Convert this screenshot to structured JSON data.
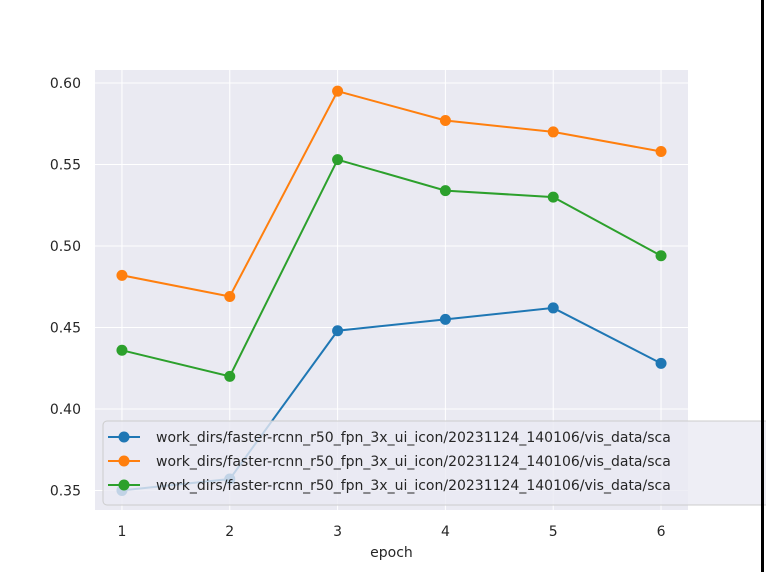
{
  "chart_data": {
    "type": "line",
    "title": "",
    "xlabel": "epoch",
    "ylabel": "",
    "x": [
      1,
      2,
      3,
      4,
      5,
      6
    ],
    "xticks": [
      "1",
      "2",
      "3",
      "4",
      "5",
      "6"
    ],
    "xlim": [
      0.75,
      6.25
    ],
    "ylim": [
      0.338,
      0.608
    ],
    "yticks": [
      "0.35",
      "0.40",
      "0.45",
      "0.50",
      "0.55",
      "0.60"
    ],
    "ytick_values": [
      0.35,
      0.4,
      0.45,
      0.5,
      0.55,
      0.6
    ],
    "grid": true,
    "legend_position": "lower-left",
    "colors": {
      "background": "#eaeaf2",
      "grid": "#ffffff"
    },
    "series": [
      {
        "name": "work_dirs/faster-rcnn_r50_fpn_3x_ui_icon/20231124_140106/vis_data/sca",
        "color": "#1f77b4",
        "values": [
          0.35,
          0.357,
          0.448,
          0.455,
          0.462,
          0.428
        ]
      },
      {
        "name": "work_dirs/faster-rcnn_r50_fpn_3x_ui_icon/20231124_140106/vis_data/sca",
        "color": "#ff7f0e",
        "values": [
          0.482,
          0.469,
          0.595,
          0.577,
          0.57,
          0.558
        ]
      },
      {
        "name": "work_dirs/faster-rcnn_r50_fpn_3x_ui_icon/20231124_140106/vis_data/sca",
        "color": "#2ca02c",
        "values": [
          0.436,
          0.42,
          0.553,
          0.534,
          0.53,
          0.494
        ]
      }
    ]
  }
}
